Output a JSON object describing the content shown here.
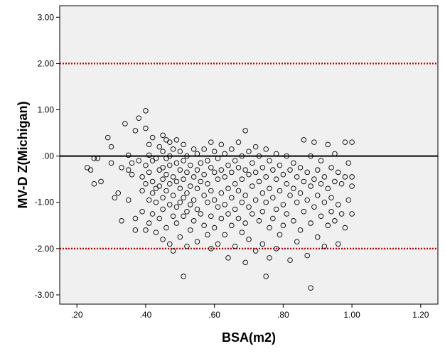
{
  "chart_data": {
    "type": "scatter",
    "xlabel": "BSA(m2)",
    "ylabel": "MV-D Z(Michigan)",
    "xlim": [
      0.15,
      1.25
    ],
    "ylim": [
      -3.2,
      3.25
    ],
    "x_ticks": [
      ".20",
      ".40",
      ".60",
      ".80",
      "1.00",
      "1.20"
    ],
    "y_ticks": [
      "3.00",
      "2.00",
      "1.00",
      ".00",
      "-1.00",
      "-2.00",
      "-3.00"
    ],
    "grid": false,
    "legend": "none",
    "reference_lines": [
      {
        "y": 0,
        "style": "solid",
        "color": "#000000"
      },
      {
        "y": 2,
        "style": "dotted",
        "color": "#c00000"
      },
      {
        "y": -2,
        "style": "dotted",
        "color": "#c00000"
      }
    ],
    "colors": {
      "plot_background": "#f0f0f0",
      "marker": "#000000",
      "limit_line": "#c00000"
    },
    "points": [
      [
        0.23,
        -0.25
      ],
      [
        0.24,
        -0.3
      ],
      [
        0.25,
        -0.05
      ],
      [
        0.26,
        -0.05
      ],
      [
        0.25,
        -0.6
      ],
      [
        0.27,
        -0.55
      ],
      [
        0.29,
        0.4
      ],
      [
        0.3,
        0.2
      ],
      [
        0.3,
        -0.15
      ],
      [
        0.31,
        -0.9
      ],
      [
        0.32,
        -0.8
      ],
      [
        0.33,
        -0.25
      ],
      [
        0.33,
        -1.4
      ],
      [
        0.34,
        0.7
      ],
      [
        0.35,
        0.02
      ],
      [
        0.35,
        -0.3
      ],
      [
        0.35,
        -0.95
      ],
      [
        0.36,
        -0.15
      ],
      [
        0.36,
        -0.4
      ],
      [
        0.37,
        -1.35
      ],
      [
        0.37,
        -1.6
      ],
      [
        0.37,
        0.55
      ],
      [
        0.38,
        0.82
      ],
      [
        0.38,
        -0.1
      ],
      [
        0.39,
        -0.45
      ],
      [
        0.39,
        -0.75
      ],
      [
        0.39,
        -1.2
      ],
      [
        0.4,
        0.98
      ],
      [
        0.4,
        0.6
      ],
      [
        0.4,
        -0.2
      ],
      [
        0.4,
        -0.6
      ],
      [
        0.4,
        -1.6
      ],
      [
        0.41,
        0.25
      ],
      [
        0.41,
        0.02
      ],
      [
        0.41,
        -0.35
      ],
      [
        0.41,
        -0.95
      ],
      [
        0.41,
        -1.45
      ],
      [
        0.42,
        0.4
      ],
      [
        0.42,
        -0.1
      ],
      [
        0.42,
        -0.55
      ],
      [
        0.42,
        -0.8
      ],
      [
        0.42,
        -1.25
      ],
      [
        0.43,
        -0.05
      ],
      [
        0.43,
        -0.7
      ],
      [
        0.43,
        -1.0
      ],
      [
        0.43,
        -1.65
      ],
      [
        0.44,
        0.2
      ],
      [
        0.44,
        -0.3
      ],
      [
        0.44,
        -0.65
      ],
      [
        0.44,
        -1.35
      ],
      [
        0.45,
        0.45
      ],
      [
        0.45,
        0.1
      ],
      [
        0.45,
        -0.25
      ],
      [
        0.45,
        -0.5
      ],
      [
        0.45,
        -0.9
      ],
      [
        0.45,
        -1.15
      ],
      [
        0.45,
        -1.8
      ],
      [
        0.46,
        0.35
      ],
      [
        0.46,
        -0.05
      ],
      [
        0.46,
        -0.4
      ],
      [
        0.46,
        -0.75
      ],
      [
        0.46,
        -1.55
      ],
      [
        0.47,
        0.3
      ],
      [
        0.47,
        0.0
      ],
      [
        0.47,
        -0.2
      ],
      [
        0.47,
        -0.6
      ],
      [
        0.47,
        -1.05
      ],
      [
        0.47,
        -1.9
      ],
      [
        0.48,
        0.15
      ],
      [
        0.48,
        -0.45
      ],
      [
        0.48,
        -0.85
      ],
      [
        0.48,
        -1.3
      ],
      [
        0.48,
        -2.05
      ],
      [
        0.49,
        0.35
      ],
      [
        0.49,
        -0.15
      ],
      [
        0.49,
        -0.55
      ],
      [
        0.49,
        -1.1
      ],
      [
        0.49,
        -1.45
      ],
      [
        0.5,
        0.1
      ],
      [
        0.5,
        -0.3
      ],
      [
        0.5,
        -0.7
      ],
      [
        0.5,
        -1.0
      ],
      [
        0.5,
        -1.75
      ],
      [
        0.51,
        0.25
      ],
      [
        0.51,
        -0.1
      ],
      [
        0.51,
        -0.5
      ],
      [
        0.51,
        -0.9
      ],
      [
        0.51,
        -1.3
      ],
      [
        0.51,
        -2.6
      ],
      [
        0.52,
        0.0
      ],
      [
        0.52,
        -0.35
      ],
      [
        0.52,
        -0.8
      ],
      [
        0.52,
        -1.2
      ],
      [
        0.52,
        -1.95
      ],
      [
        0.53,
        -0.2
      ],
      [
        0.53,
        -0.65
      ],
      [
        0.53,
        -1.05
      ],
      [
        0.53,
        -1.6
      ],
      [
        0.54,
        0.15
      ],
      [
        0.54,
        -0.45
      ],
      [
        0.54,
        -0.95
      ],
      [
        0.54,
        -1.4
      ],
      [
        0.55,
        0.05
      ],
      [
        0.55,
        -0.3
      ],
      [
        0.55,
        -0.7
      ],
      [
        0.55,
        -1.15
      ],
      [
        0.55,
        -1.85
      ],
      [
        0.56,
        -0.15
      ],
      [
        0.56,
        -0.55
      ],
      [
        0.56,
        -1.25
      ],
      [
        0.57,
        0.15
      ],
      [
        0.57,
        -0.4
      ],
      [
        0.57,
        -0.85
      ],
      [
        0.57,
        -1.5
      ],
      [
        0.58,
        -0.1
      ],
      [
        0.58,
        -0.6
      ],
      [
        0.58,
        -1.0
      ],
      [
        0.58,
        -1.7
      ],
      [
        0.59,
        0.3
      ],
      [
        0.59,
        -0.25
      ],
      [
        0.59,
        -0.75
      ],
      [
        0.59,
        -1.3
      ],
      [
        0.59,
        -2.0
      ],
      [
        0.6,
        0.1
      ],
      [
        0.6,
        -0.35
      ],
      [
        0.6,
        -0.95
      ],
      [
        0.6,
        -1.55
      ],
      [
        0.61,
        -0.05
      ],
      [
        0.61,
        -0.5
      ],
      [
        0.61,
        -1.1
      ],
      [
        0.61,
        -1.9
      ],
      [
        0.62,
        0.25
      ],
      [
        0.62,
        -0.3
      ],
      [
        0.62,
        -0.8
      ],
      [
        0.62,
        -1.35
      ],
      [
        0.63,
        0.05
      ],
      [
        0.63,
        -0.45
      ],
      [
        0.63,
        -1.05
      ],
      [
        0.63,
        -1.7
      ],
      [
        0.64,
        -0.2
      ],
      [
        0.64,
        -0.7
      ],
      [
        0.64,
        -1.25
      ],
      [
        0.64,
        -2.2
      ],
      [
        0.65,
        0.15
      ],
      [
        0.65,
        -0.35
      ],
      [
        0.65,
        -0.9
      ],
      [
        0.65,
        -1.5
      ],
      [
        0.66,
        -0.1
      ],
      [
        0.66,
        -0.6
      ],
      [
        0.66,
        -1.15
      ],
      [
        0.66,
        -1.95
      ],
      [
        0.67,
        0.3
      ],
      [
        0.67,
        -0.25
      ],
      [
        0.67,
        -0.75
      ],
      [
        0.67,
        -1.35
      ],
      [
        0.68,
        0.0
      ],
      [
        0.68,
        -0.5
      ],
      [
        0.68,
        -1.0
      ],
      [
        0.68,
        -1.65
      ],
      [
        0.69,
        0.55
      ],
      [
        0.69,
        -0.3
      ],
      [
        0.69,
        -0.85
      ],
      [
        0.69,
        -1.45
      ],
      [
        0.69,
        -2.3
      ],
      [
        0.7,
        0.1
      ],
      [
        0.7,
        -0.4
      ],
      [
        0.7,
        -1.1
      ],
      [
        0.7,
        -1.8
      ],
      [
        0.71,
        -0.15
      ],
      [
        0.71,
        -0.65
      ],
      [
        0.71,
        -1.25
      ],
      [
        0.72,
        0.2
      ],
      [
        0.72,
        -0.35
      ],
      [
        0.72,
        -0.95
      ],
      [
        0.72,
        -2.05
      ],
      [
        0.73,
        0.0
      ],
      [
        0.73,
        -0.55
      ],
      [
        0.73,
        -1.4
      ],
      [
        0.74,
        -0.25
      ],
      [
        0.74,
        -0.8
      ],
      [
        0.74,
        -1.2
      ],
      [
        0.74,
        -1.9
      ],
      [
        0.75,
        0.15
      ],
      [
        0.75,
        -0.45
      ],
      [
        0.75,
        -1.0
      ],
      [
        0.75,
        -2.6
      ],
      [
        0.76,
        -0.1
      ],
      [
        0.76,
        -0.7
      ],
      [
        0.76,
        -1.55
      ],
      [
        0.76,
        -2.2
      ],
      [
        0.77,
        -0.3
      ],
      [
        0.77,
        -0.9
      ],
      [
        0.77,
        -1.35
      ],
      [
        0.78,
        0.05
      ],
      [
        0.78,
        -0.5
      ],
      [
        0.78,
        -1.15
      ],
      [
        0.78,
        -2.0
      ],
      [
        0.79,
        -0.2
      ],
      [
        0.79,
        -0.75
      ],
      [
        0.79,
        -1.7
      ],
      [
        0.8,
        -0.4
      ],
      [
        0.8,
        -1.05
      ],
      [
        0.8,
        -1.5
      ],
      [
        0.81,
        0.0
      ],
      [
        0.81,
        -0.6
      ],
      [
        0.81,
        -1.25
      ],
      [
        0.82,
        -0.3
      ],
      [
        0.82,
        -0.85
      ],
      [
        0.82,
        -2.25
      ],
      [
        0.83,
        -0.15
      ],
      [
        0.83,
        -0.7
      ],
      [
        0.83,
        -1.4
      ],
      [
        0.84,
        -0.45
      ],
      [
        0.84,
        -1.0
      ],
      [
        0.84,
        -1.85
      ],
      [
        0.85,
        -0.25
      ],
      [
        0.85,
        -0.8
      ],
      [
        0.85,
        -1.6
      ],
      [
        0.86,
        0.35
      ],
      [
        0.86,
        -0.55
      ],
      [
        0.86,
        -1.2
      ],
      [
        0.87,
        -0.35
      ],
      [
        0.87,
        -0.95
      ],
      [
        0.87,
        -2.15
      ],
      [
        0.88,
        0.0
      ],
      [
        0.88,
        -0.65
      ],
      [
        0.88,
        -1.45
      ],
      [
        0.88,
        -2.85
      ],
      [
        0.89,
        0.3
      ],
      [
        0.89,
        -0.5
      ],
      [
        0.89,
        -1.1
      ],
      [
        0.9,
        -0.3
      ],
      [
        0.9,
        -0.85
      ],
      [
        0.9,
        -1.75
      ],
      [
        0.91,
        -0.1
      ],
      [
        0.91,
        -0.6
      ],
      [
        0.91,
        -1.3
      ],
      [
        0.92,
        -0.45
      ],
      [
        0.92,
        -1.0
      ],
      [
        0.92,
        -1.95
      ],
      [
        0.93,
        0.25
      ],
      [
        0.93,
        -0.7
      ],
      [
        0.93,
        -1.5
      ],
      [
        0.94,
        -0.25
      ],
      [
        0.94,
        -0.9
      ],
      [
        0.94,
        -1.2
      ],
      [
        0.95,
        0.05
      ],
      [
        0.95,
        -0.55
      ],
      [
        0.95,
        -1.4
      ],
      [
        0.96,
        -0.35
      ],
      [
        0.96,
        -1.05
      ],
      [
        0.96,
        -1.9
      ],
      [
        0.97,
        -0.6
      ],
      [
        0.97,
        -1.25
      ],
      [
        0.98,
        0.3
      ],
      [
        0.98,
        -0.45
      ],
      [
        0.98,
        -1.55
      ],
      [
        0.99,
        -0.15
      ],
      [
        0.99,
        -0.95
      ],
      [
        1.0,
        0.3
      ],
      [
        1.0,
        -0.45
      ],
      [
        1.0,
        -0.65
      ],
      [
        1.0,
        -1.25
      ]
    ]
  }
}
